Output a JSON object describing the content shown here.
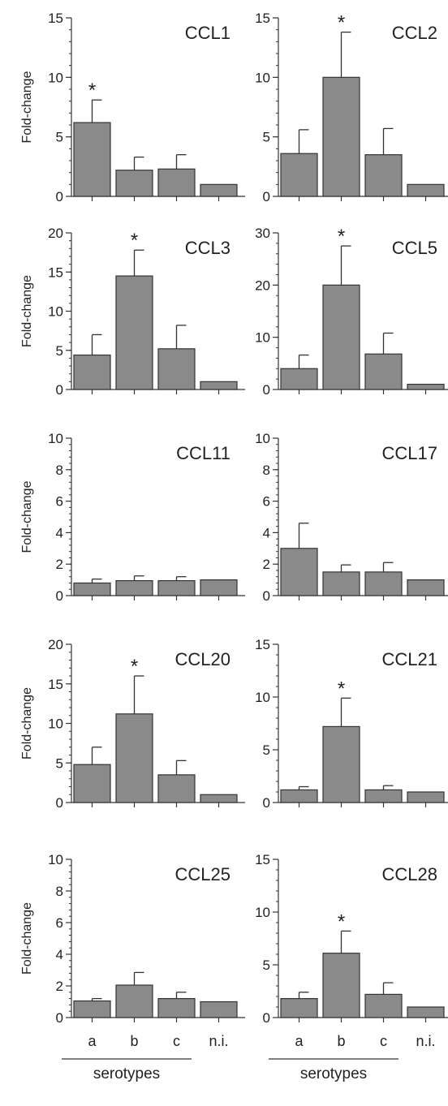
{
  "ylabel": "Fold-change",
  "categories": [
    "a",
    "b",
    "c",
    "n.i."
  ],
  "group_label": "serotypes",
  "significance_marker": "*",
  "bar_color": "#8a8a8a",
  "chart_data": [
    {
      "type": "bar",
      "title": "CCL1",
      "ylabel": "Fold-change",
      "ylim": [
        0,
        15
      ],
      "yticks": [
        0,
        5,
        10,
        15
      ],
      "categories": [
        "a",
        "b",
        "c",
        "n.i."
      ],
      "values": [
        6.2,
        2.2,
        2.3,
        1.0
      ],
      "errors": [
        1.9,
        1.1,
        1.2,
        0
      ],
      "significant": [
        true,
        false,
        false,
        false
      ]
    },
    {
      "type": "bar",
      "title": "CCL2",
      "ylabel": "",
      "ylim": [
        0,
        15
      ],
      "yticks": [
        0,
        5,
        10,
        15
      ],
      "categories": [
        "a",
        "b",
        "c",
        "n.i."
      ],
      "values": [
        3.6,
        10.0,
        3.5,
        1.0
      ],
      "errors": [
        2.0,
        3.8,
        2.2,
        0
      ],
      "significant": [
        false,
        true,
        false,
        false
      ]
    },
    {
      "type": "bar",
      "title": "CCL3",
      "ylabel": "Fold-change",
      "ylim": [
        0,
        20
      ],
      "yticks": [
        0,
        5,
        10,
        15,
        20
      ],
      "categories": [
        "a",
        "b",
        "c",
        "n.i."
      ],
      "values": [
        4.4,
        14.5,
        5.2,
        1.0
      ],
      "errors": [
        2.6,
        3.3,
        3.0,
        0
      ],
      "significant": [
        false,
        true,
        false,
        false
      ]
    },
    {
      "type": "bar",
      "title": "CCL5",
      "ylabel": "",
      "ylim": [
        0,
        30
      ],
      "yticks": [
        0,
        10,
        20,
        30
      ],
      "categories": [
        "a",
        "b",
        "c",
        "n.i."
      ],
      "values": [
        4.0,
        20.0,
        6.8,
        1.0
      ],
      "errors": [
        2.6,
        7.5,
        4.0,
        0
      ],
      "significant": [
        false,
        true,
        false,
        false
      ]
    },
    {
      "type": "bar",
      "title": "CCL11",
      "ylabel": "Fold-change",
      "ylim": [
        0,
        10
      ],
      "yticks": [
        0,
        2,
        4,
        6,
        8,
        10
      ],
      "categories": [
        "a",
        "b",
        "c",
        "n.i."
      ],
      "values": [
        0.8,
        0.95,
        0.95,
        1.0
      ],
      "errors": [
        0.25,
        0.3,
        0.25,
        0
      ],
      "significant": [
        false,
        false,
        false,
        false
      ]
    },
    {
      "type": "bar",
      "title": "CCL17",
      "ylabel": "",
      "ylim": [
        0,
        10
      ],
      "yticks": [
        0,
        2,
        4,
        6,
        8,
        10
      ],
      "categories": [
        "a",
        "b",
        "c",
        "n.i."
      ],
      "values": [
        3.0,
        1.5,
        1.5,
        1.0
      ],
      "errors": [
        1.6,
        0.45,
        0.6,
        0
      ],
      "significant": [
        false,
        false,
        false,
        false
      ]
    },
    {
      "type": "bar",
      "title": "CCL20",
      "ylabel": "Fold-change",
      "ylim": [
        0,
        20
      ],
      "yticks": [
        0,
        5,
        10,
        15,
        20
      ],
      "categories": [
        "a",
        "b",
        "c",
        "n.i."
      ],
      "values": [
        4.8,
        11.2,
        3.5,
        1.0
      ],
      "errors": [
        2.2,
        4.8,
        1.8,
        0
      ],
      "significant": [
        false,
        true,
        false,
        false
      ]
    },
    {
      "type": "bar",
      "title": "CCL21",
      "ylabel": "",
      "ylim": [
        0,
        15
      ],
      "yticks": [
        0,
        5,
        10,
        15
      ],
      "categories": [
        "a",
        "b",
        "c",
        "n.i."
      ],
      "values": [
        1.2,
        7.2,
        1.2,
        1.0
      ],
      "errors": [
        0.3,
        2.7,
        0.4,
        0
      ],
      "significant": [
        false,
        true,
        false,
        false
      ]
    },
    {
      "type": "bar",
      "title": "CCL25",
      "ylabel": "Fold-change",
      "ylim": [
        0,
        10
      ],
      "yticks": [
        0,
        2,
        4,
        6,
        8,
        10
      ],
      "categories": [
        "a",
        "b",
        "c",
        "n.i."
      ],
      "values": [
        1.05,
        2.05,
        1.2,
        1.0
      ],
      "errors": [
        0.15,
        0.8,
        0.4,
        0
      ],
      "significant": [
        false,
        false,
        false,
        false
      ]
    },
    {
      "type": "bar",
      "title": "CCL28",
      "ylabel": "",
      "ylim": [
        0,
        15
      ],
      "yticks": [
        0,
        5,
        10,
        15
      ],
      "categories": [
        "a",
        "b",
        "c",
        "n.i."
      ],
      "values": [
        1.8,
        6.1,
        2.2,
        1.0
      ],
      "errors": [
        0.6,
        2.1,
        1.1,
        0
      ],
      "significant": [
        false,
        true,
        false,
        false
      ]
    }
  ]
}
